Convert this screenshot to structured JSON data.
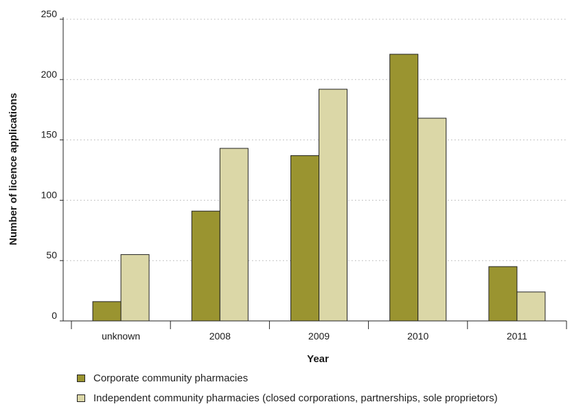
{
  "chart_data": {
    "type": "bar",
    "xlabel": "Year",
    "ylabel": "Number of licence applications",
    "categories": [
      "unknown",
      "2008",
      "2009",
      "2010",
      "2011"
    ],
    "series": [
      {
        "name": "Corporate community pharmacies",
        "color": "#9a9430",
        "values": [
          16,
          91,
          137,
          221,
          45
        ]
      },
      {
        "name": "Independent community pharmacies (closed corporations, partnerships, sole proprietors)",
        "color": "#dbd7a7",
        "values": [
          55,
          143,
          192,
          168,
          24
        ]
      }
    ],
    "ylim": [
      0,
      250
    ],
    "yticks": [
      0,
      50,
      100,
      150,
      200,
      250
    ],
    "grid": "horizontal dotted",
    "legend_position": "bottom-left"
  }
}
